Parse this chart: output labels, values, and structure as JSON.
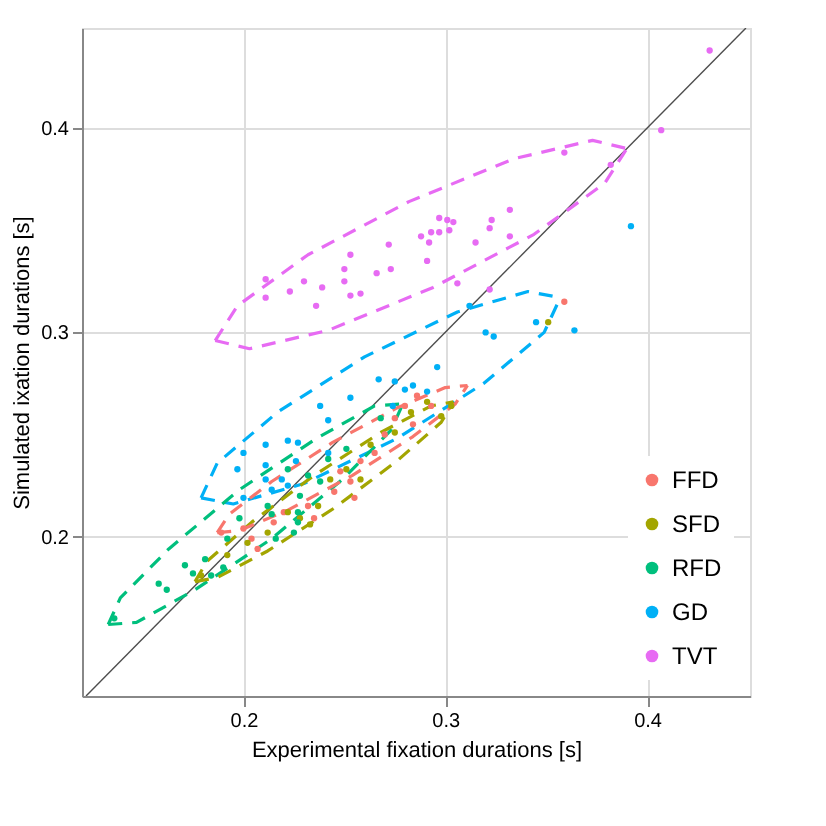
{
  "chart_data": {
    "type": "scatter",
    "xlabel": "Experimental fixation durations [s]",
    "ylabel": "Simulated ixation durations [s]",
    "xlim": [
      0.12,
      0.451
    ],
    "ylim": [
      0.122,
      0.449
    ],
    "xticks": [
      0.2,
      0.3,
      0.4
    ],
    "yticks": [
      0.2,
      0.3,
      0.4
    ],
    "grid": true,
    "legend": "bottom right",
    "marker": "circle",
    "series": [
      {
        "type": "line",
        "color": "#4d4d4d",
        "line_style": "solid",
        "marker": "none",
        "x": [
          0.122,
          0.449
        ],
        "values": [
          0.122,
          0.449
        ]
      },
      {
        "type": "line",
        "color": "#e76bf3",
        "line_style": "dashed",
        "marker": "none",
        "x": [
          0.186,
          0.197,
          0.232,
          0.282,
          0.334,
          0.373,
          0.39
        ],
        "values": [
          0.296,
          0.313,
          0.338,
          0.364,
          0.385,
          0.394,
          0.39
        ]
      },
      {
        "type": "line",
        "color": "#e76bf3",
        "line_style": "dashed",
        "marker": "none",
        "x": [
          0.186,
          0.203,
          0.242,
          0.294,
          0.344,
          0.379,
          0.39
        ],
        "values": [
          0.296,
          0.292,
          0.301,
          0.322,
          0.348,
          0.373,
          0.39
        ]
      },
      {
        "type": "line",
        "color": "#00b0f6",
        "line_style": "dashed",
        "marker": "none",
        "x": [
          0.179,
          0.187,
          0.217,
          0.26,
          0.306,
          0.341,
          0.357
        ],
        "values": [
          0.219,
          0.236,
          0.261,
          0.288,
          0.31,
          0.32,
          0.317
        ]
      },
      {
        "type": "line",
        "color": "#00b0f6",
        "line_style": "dashed",
        "marker": "none",
        "x": [
          0.179,
          0.195,
          0.23,
          0.276,
          0.319,
          0.349,
          0.357
        ],
        "values": [
          0.219,
          0.216,
          0.226,
          0.248,
          0.275,
          0.3,
          0.317
        ]
      },
      {
        "type": "line",
        "color": "#00bf7d",
        "line_style": "dashed",
        "marker": "none",
        "x": [
          0.133,
          0.139,
          0.163,
          0.198,
          0.236,
          0.265,
          0.279
        ],
        "values": [
          0.157,
          0.17,
          0.194,
          0.223,
          0.248,
          0.264,
          0.265
        ]
      },
      {
        "type": "line",
        "color": "#00bf7d",
        "line_style": "dashed",
        "marker": "none",
        "x": [
          0.133,
          0.147,
          0.176,
          0.214,
          0.249,
          0.273,
          0.279
        ],
        "values": [
          0.157,
          0.158,
          0.174,
          0.199,
          0.228,
          0.252,
          0.265
        ]
      },
      {
        "type": "line",
        "color": "#a3a500",
        "line_style": "dashed",
        "marker": "none",
        "x": [
          0.176,
          0.182,
          0.204,
          0.235,
          0.268,
          0.293,
          0.304
        ],
        "values": [
          0.178,
          0.188,
          0.207,
          0.23,
          0.251,
          0.264,
          0.266
        ]
      },
      {
        "type": "line",
        "color": "#a3a500",
        "line_style": "dashed",
        "marker": "none",
        "x": [
          0.176,
          0.187,
          0.212,
          0.245,
          0.276,
          0.298,
          0.304
        ],
        "values": [
          0.178,
          0.18,
          0.193,
          0.214,
          0.237,
          0.256,
          0.266
        ]
      },
      {
        "type": "line",
        "color": "#f8766d",
        "line_style": "dashed",
        "marker": "none",
        "x": [
          0.187,
          0.193,
          0.214,
          0.244,
          0.276,
          0.3,
          0.311
        ],
        "values": [
          0.202,
          0.211,
          0.227,
          0.246,
          0.263,
          0.273,
          0.274
        ]
      },
      {
        "type": "line",
        "color": "#f8766d",
        "line_style": "dashed",
        "marker": "none",
        "x": [
          0.187,
          0.198,
          0.222,
          0.254,
          0.284,
          0.305,
          0.311
        ],
        "values": [
          0.202,
          0.203,
          0.213,
          0.23,
          0.249,
          0.265,
          0.274
        ]
      },
      {
        "name": "FFD",
        "color": "#f8766d",
        "x": [
          0.359,
          0.189,
          0.2,
          0.204,
          0.207,
          0.215,
          0.22,
          0.232,
          0.235,
          0.245,
          0.248,
          0.253,
          0.258,
          0.265,
          0.27,
          0.275,
          0.28,
          0.286,
          0.293,
          0.284,
          0.255
        ],
        "values": [
          0.315,
          0.202,
          0.204,
          0.199,
          0.194,
          0.207,
          0.212,
          0.215,
          0.209,
          0.222,
          0.232,
          0.227,
          0.237,
          0.241,
          0.25,
          0.258,
          0.264,
          0.269,
          0.264,
          0.255,
          0.219
        ]
      },
      {
        "name": "SFD",
        "color": "#a3a500",
        "x": [
          0.351,
          0.179,
          0.192,
          0.202,
          0.212,
          0.222,
          0.228,
          0.237,
          0.243,
          0.251,
          0.258,
          0.263,
          0.275,
          0.283,
          0.291,
          0.303,
          0.298,
          0.233
        ],
        "values": [
          0.305,
          0.181,
          0.191,
          0.197,
          0.202,
          0.212,
          0.209,
          0.215,
          0.228,
          0.233,
          0.228,
          0.245,
          0.251,
          0.261,
          0.266,
          0.264,
          0.259,
          0.206
        ]
      },
      {
        "name": "RFD",
        "color": "#00bf7d",
        "x": [
          0.136,
          0.158,
          0.162,
          0.171,
          0.175,
          0.181,
          0.19,
          0.184,
          0.192,
          0.198,
          0.212,
          0.216,
          0.227,
          0.228,
          0.222,
          0.232,
          0.238,
          0.214,
          0.225,
          0.242,
          0.251,
          0.268,
          0.227
        ],
        "values": [
          0.16,
          0.177,
          0.174,
          0.186,
          0.182,
          0.189,
          0.185,
          0.181,
          0.199,
          0.209,
          0.215,
          0.199,
          0.212,
          0.22,
          0.233,
          0.23,
          0.227,
          0.211,
          0.202,
          0.238,
          0.243,
          0.258,
          0.207
        ]
      },
      {
        "name": "GD",
        "color": "#00b0f6",
        "x": [
          0.392,
          0.312,
          0.32,
          0.324,
          0.345,
          0.364,
          0.296,
          0.267,
          0.275,
          0.284,
          0.28,
          0.291,
          0.253,
          0.274,
          0.238,
          0.242,
          0.222,
          0.227,
          0.211,
          0.2,
          0.242,
          0.226,
          0.211,
          0.197,
          0.219,
          0.211,
          0.214,
          0.2,
          0.222
        ],
        "values": [
          0.352,
          0.313,
          0.3,
          0.298,
          0.305,
          0.301,
          0.283,
          0.277,
          0.276,
          0.274,
          0.272,
          0.271,
          0.268,
          0.264,
          0.264,
          0.257,
          0.247,
          0.246,
          0.245,
          0.241,
          0.241,
          0.237,
          0.235,
          0.233,
          0.228,
          0.228,
          0.223,
          0.219,
          0.225
        ]
      },
      {
        "name": "TVT",
        "color": "#e76bf3",
        "x": [
          0.431,
          0.407,
          0.359,
          0.382,
          0.332,
          0.323,
          0.322,
          0.332,
          0.315,
          0.297,
          0.301,
          0.304,
          0.293,
          0.297,
          0.302,
          0.288,
          0.292,
          0.272,
          0.253,
          0.291,
          0.273,
          0.266,
          0.25,
          0.25,
          0.23,
          0.239,
          0.223,
          0.211,
          0.211,
          0.253,
          0.258,
          0.236,
          0.322,
          0.306
        ],
        "values": [
          0.438,
          0.399,
          0.388,
          0.382,
          0.36,
          0.355,
          0.351,
          0.347,
          0.344,
          0.356,
          0.355,
          0.354,
          0.349,
          0.349,
          0.35,
          0.347,
          0.344,
          0.343,
          0.338,
          0.335,
          0.331,
          0.329,
          0.331,
          0.325,
          0.325,
          0.322,
          0.32,
          0.326,
          0.317,
          0.318,
          0.319,
          0.313,
          0.321,
          0.324
        ]
      }
    ]
  }
}
